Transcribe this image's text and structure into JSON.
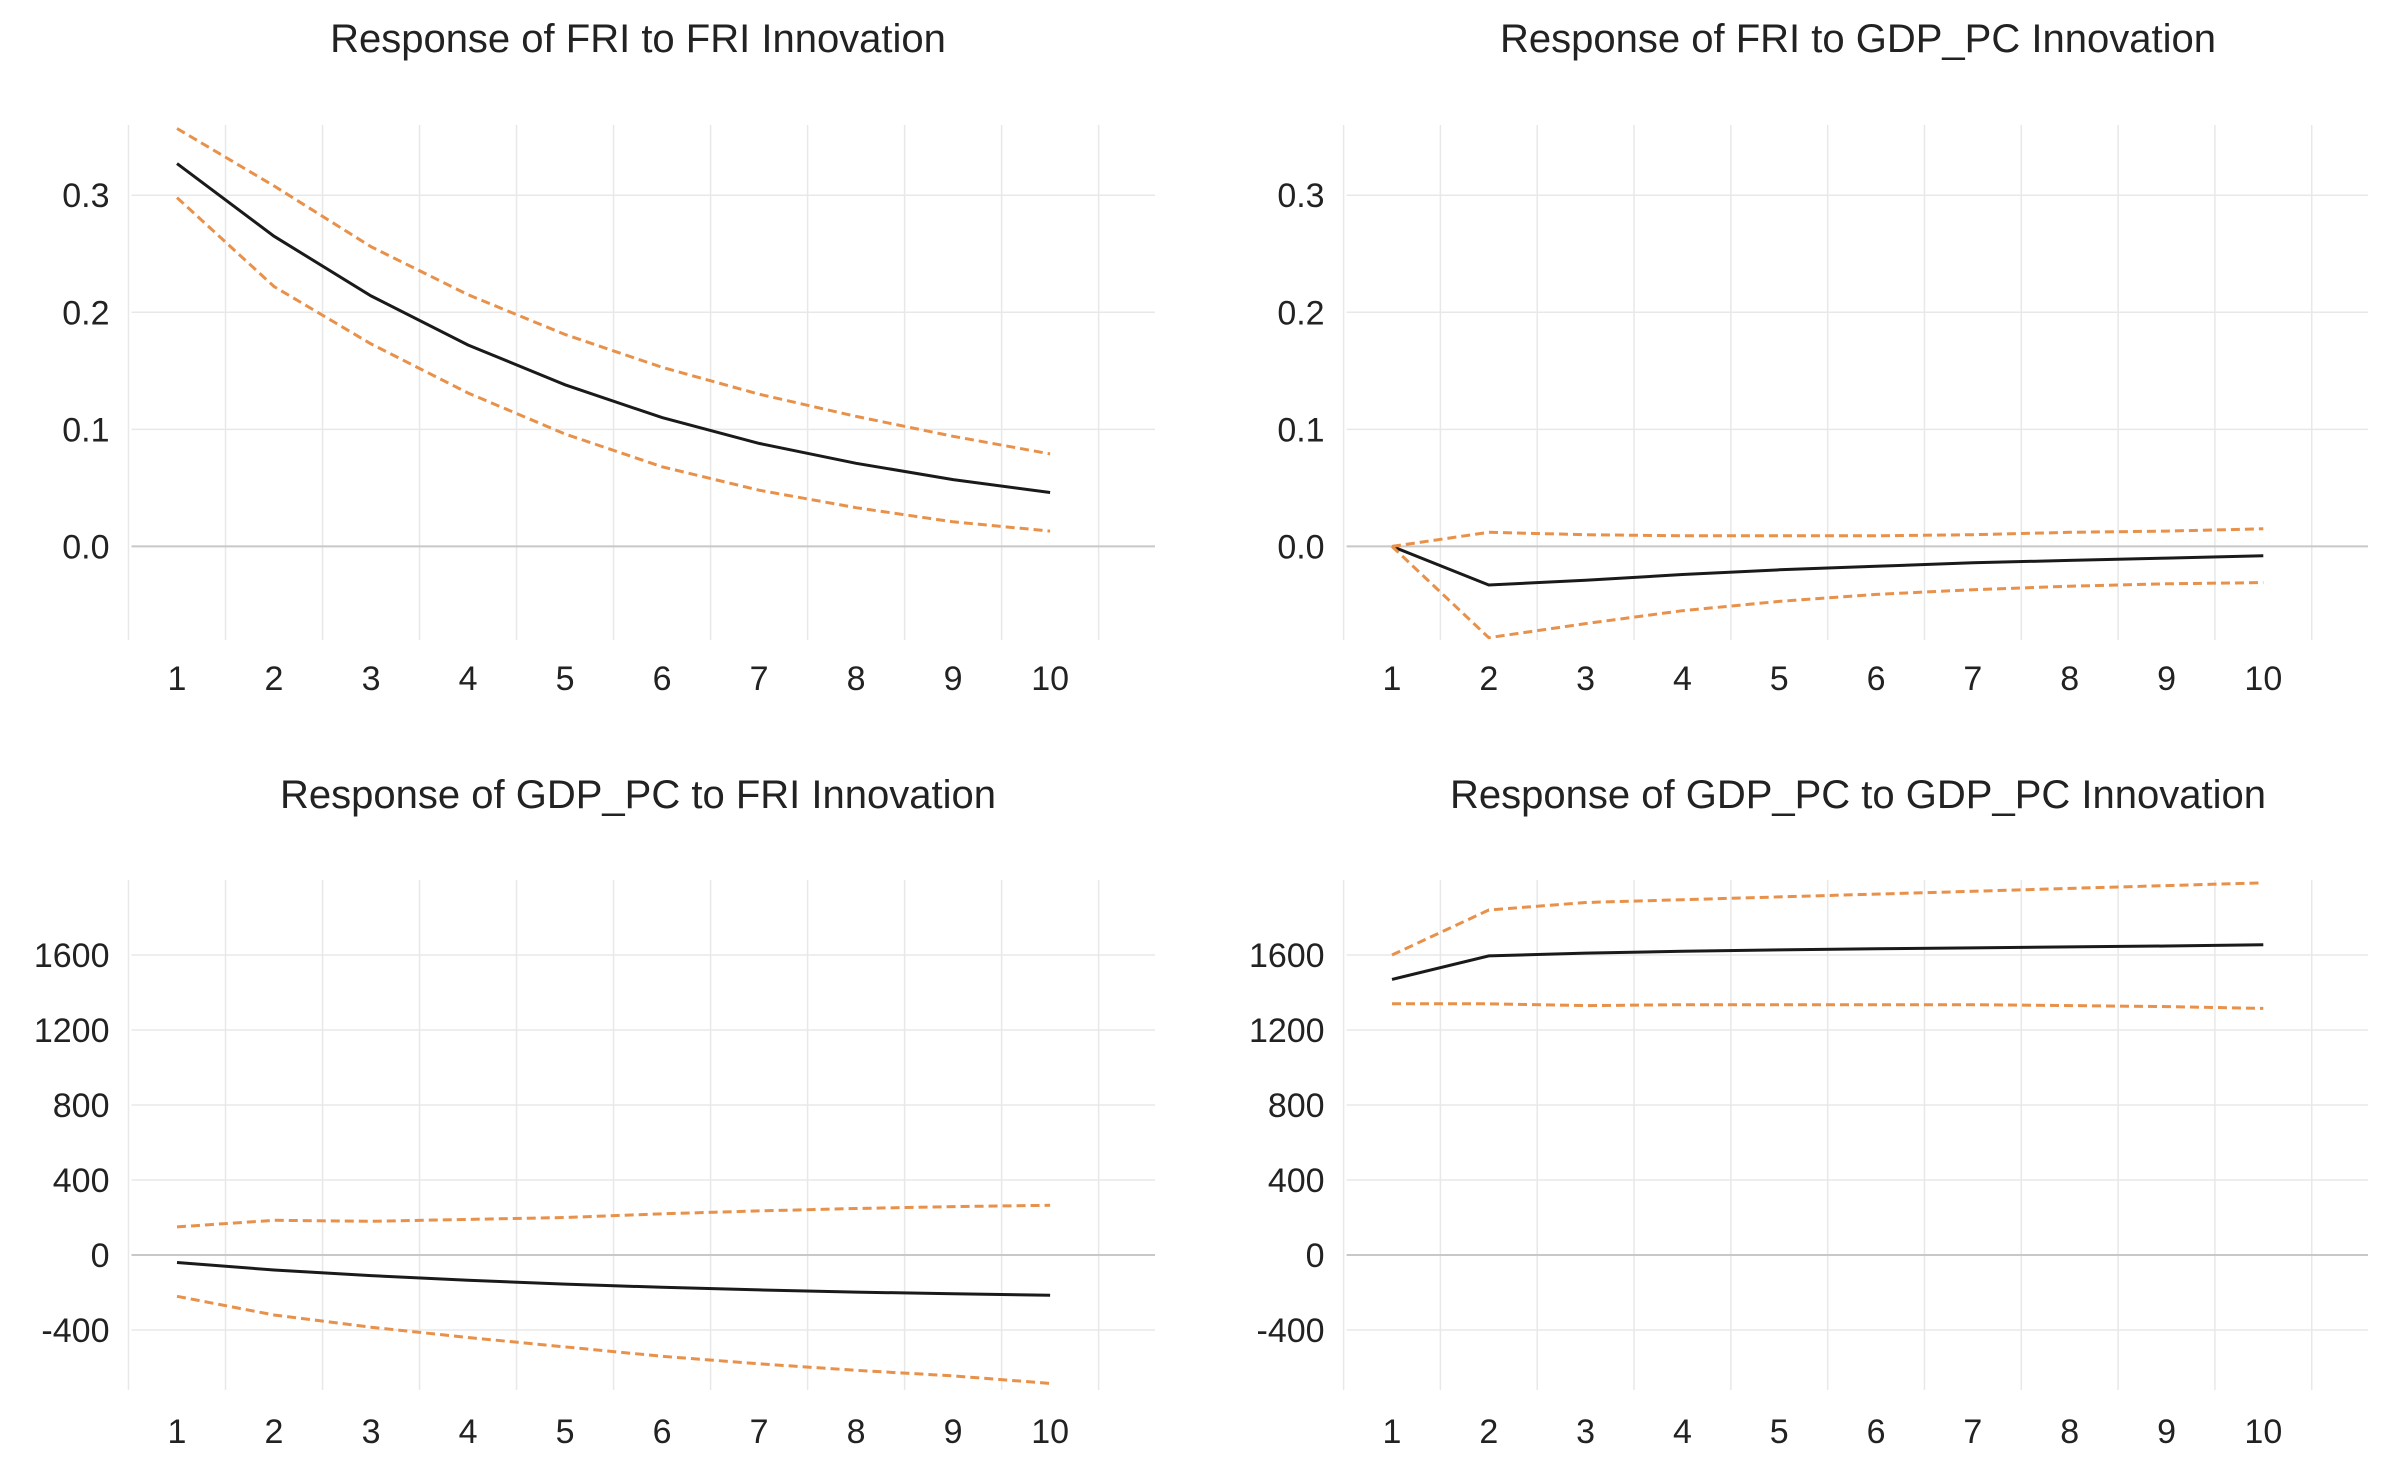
{
  "chart_data": [
    {
      "type": "line",
      "title": "Response of FRI to FRI Innovation",
      "x": [
        1,
        2,
        3,
        4,
        5,
        6,
        7,
        8,
        9,
        10
      ],
      "xticks": [
        "1",
        "2",
        "3",
        "4",
        "5",
        "6",
        "7",
        "8",
        "9",
        "10"
      ],
      "ylim": [
        -0.08,
        0.36
      ],
      "yticks": [
        0.0,
        0.1,
        0.2,
        0.3
      ],
      "ytick_labels": [
        "0.0",
        "0.1",
        "0.2",
        "0.3"
      ],
      "colors": {
        "response": "#1a1a1a",
        "band": "#e8914a"
      },
      "series": [
        {
          "name": "response",
          "values": [
            0.327,
            0.265,
            0.214,
            0.172,
            0.138,
            0.11,
            0.088,
            0.071,
            0.057,
            0.046
          ]
        },
        {
          "name": "upper",
          "values": [
            0.357,
            0.308,
            0.256,
            0.215,
            0.181,
            0.153,
            0.13,
            0.111,
            0.094,
            0.079
          ]
        },
        {
          "name": "lower",
          "values": [
            0.298,
            0.222,
            0.173,
            0.131,
            0.096,
            0.068,
            0.048,
            0.033,
            0.021,
            0.013
          ]
        }
      ]
    },
    {
      "type": "line",
      "title": "Response of FRI to GDP_PC Innovation",
      "x": [
        1,
        2,
        3,
        4,
        5,
        6,
        7,
        8,
        9,
        10
      ],
      "xticks": [
        "1",
        "2",
        "3",
        "4",
        "5",
        "6",
        "7",
        "8",
        "9",
        "10"
      ],
      "ylim": [
        -0.08,
        0.36
      ],
      "yticks": [
        0.0,
        0.1,
        0.2,
        0.3
      ],
      "ytick_labels": [
        "0.0",
        "0.1",
        "0.2",
        "0.3"
      ],
      "colors": {
        "response": "#1a1a1a",
        "band": "#e8914a"
      },
      "series": [
        {
          "name": "response",
          "values": [
            0.0,
            -0.033,
            -0.029,
            -0.024,
            -0.02,
            -0.017,
            -0.014,
            -0.012,
            -0.01,
            -0.008
          ]
        },
        {
          "name": "upper",
          "values": [
            0.0,
            0.012,
            0.01,
            0.009,
            0.009,
            0.009,
            0.01,
            0.012,
            0.013,
            0.015
          ]
        },
        {
          "name": "lower",
          "values": [
            0.0,
            -0.078,
            -0.066,
            -0.055,
            -0.047,
            -0.041,
            -0.037,
            -0.034,
            -0.032,
            -0.031
          ]
        }
      ]
    },
    {
      "type": "line",
      "title": "Response of GDP_PC to FRI Innovation",
      "x": [
        1,
        2,
        3,
        4,
        5,
        6,
        7,
        8,
        9,
        10
      ],
      "xticks": [
        "1",
        "2",
        "3",
        "4",
        "5",
        "6",
        "7",
        "8",
        "9",
        "10"
      ],
      "ylim": [
        -720,
        2000
      ],
      "yticks": [
        -400,
        0,
        400,
        800,
        1200,
        1600
      ],
      "ytick_labels": [
        "-400",
        "0",
        "400",
        "800",
        "1200",
        "1600"
      ],
      "colors": {
        "response": "#1a1a1a",
        "band": "#e8914a"
      },
      "series": [
        {
          "name": "response",
          "values": [
            -40,
            -80,
            -110,
            -135,
            -155,
            -172,
            -186,
            -198,
            -207,
            -215
          ]
        },
        {
          "name": "upper",
          "values": [
            150,
            185,
            180,
            190,
            200,
            220,
            235,
            248,
            258,
            265
          ]
        },
        {
          "name": "lower",
          "values": [
            -220,
            -320,
            -385,
            -440,
            -490,
            -540,
            -580,
            -615,
            -645,
            -685
          ]
        }
      ]
    },
    {
      "type": "line",
      "title": "Response of GDP_PC to GDP_PC Innovation",
      "x": [
        1,
        2,
        3,
        4,
        5,
        6,
        7,
        8,
        9,
        10
      ],
      "xticks": [
        "1",
        "2",
        "3",
        "4",
        "5",
        "6",
        "7",
        "8",
        "9",
        "10"
      ],
      "ylim": [
        -720,
        2000
      ],
      "yticks": [
        -400,
        0,
        400,
        800,
        1200,
        1600
      ],
      "ytick_labels": [
        "-400",
        "0",
        "400",
        "800",
        "1200",
        "1600"
      ],
      "colors": {
        "response": "#1a1a1a",
        "band": "#e8914a"
      },
      "series": [
        {
          "name": "response",
          "values": [
            1470,
            1595,
            1610,
            1620,
            1627,
            1633,
            1638,
            1643,
            1648,
            1655
          ]
        },
        {
          "name": "upper",
          "values": [
            1600,
            1840,
            1880,
            1895,
            1910,
            1925,
            1940,
            1955,
            1970,
            1985
          ]
        },
        {
          "name": "lower",
          "values": [
            1340,
            1340,
            1330,
            1335,
            1335,
            1335,
            1335,
            1330,
            1325,
            1315
          ]
        }
      ]
    }
  ]
}
